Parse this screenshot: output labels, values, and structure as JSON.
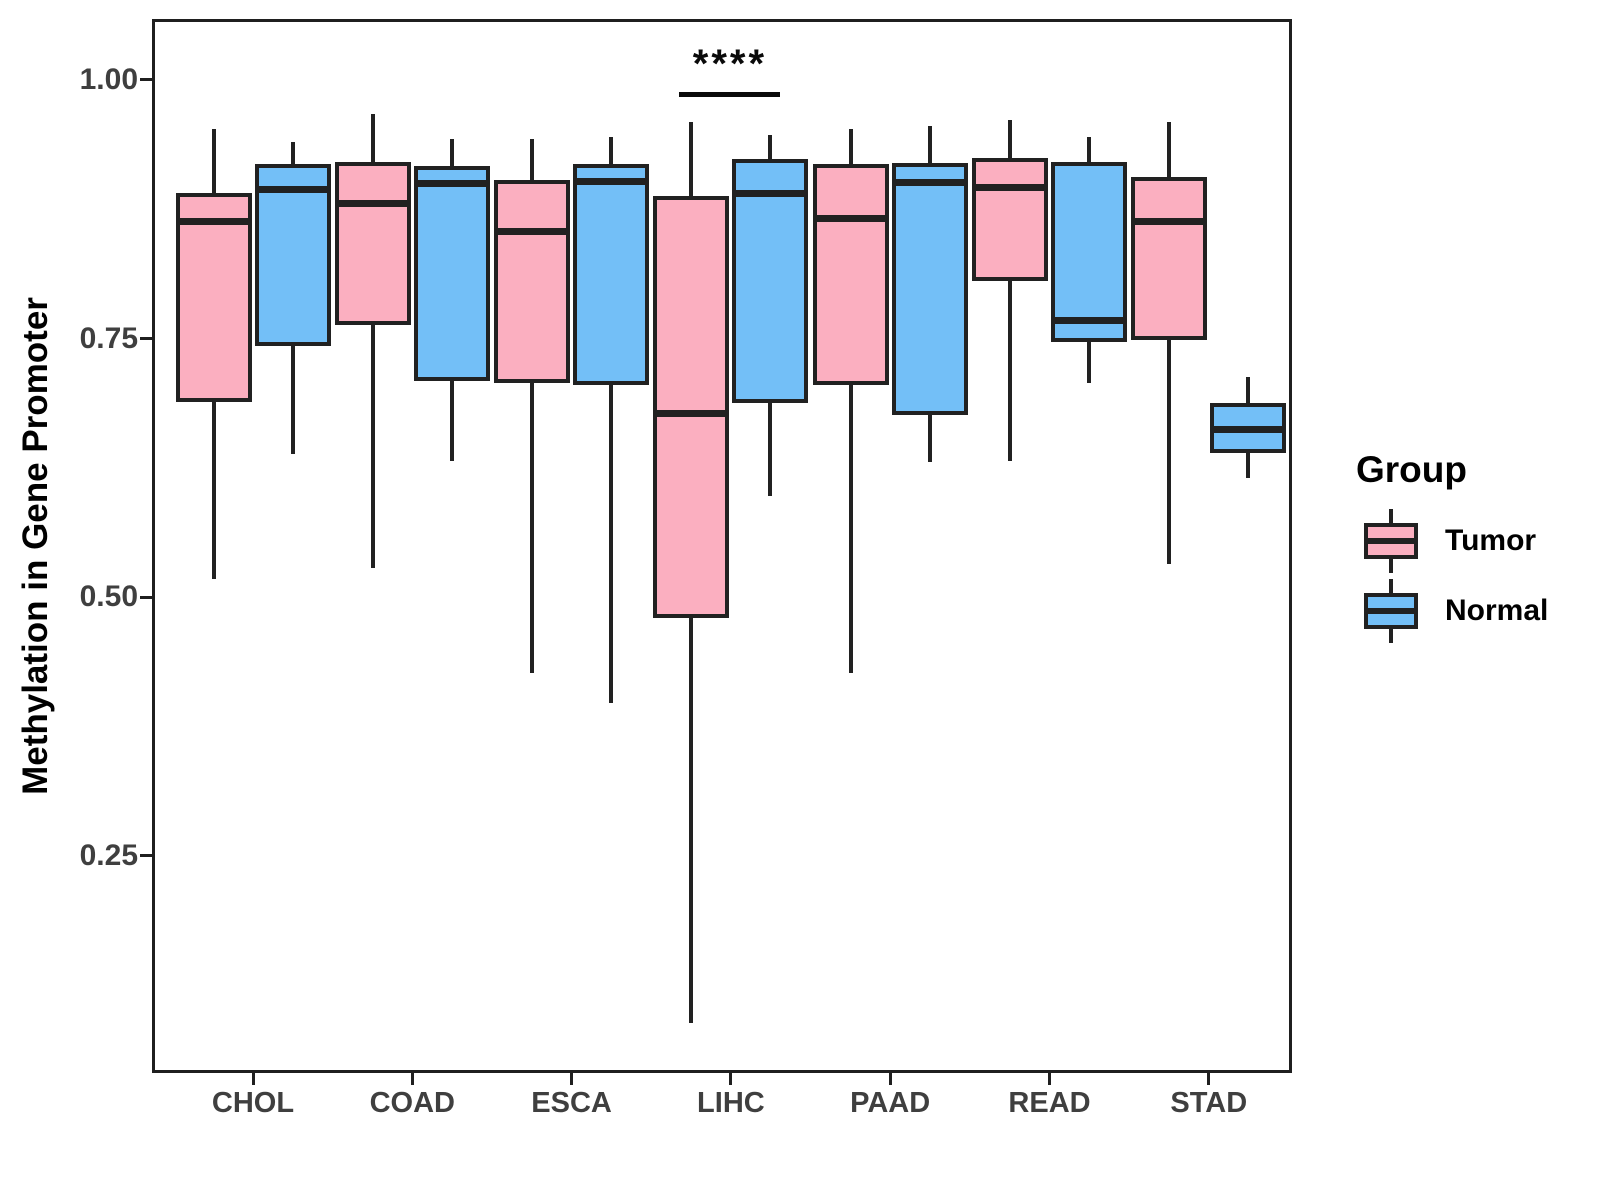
{
  "chart_data": {
    "type": "grouped_boxplot",
    "title": "",
    "xlabel": "",
    "ylabel": "Methylation in Gene Promoter",
    "ylim": [
      0.043,
      1.056
    ],
    "grid": false,
    "y_tick_values": [
      1.0,
      0.75,
      0.5,
      0.25
    ],
    "y_tick_labels": [
      "1.00",
      "0.75",
      "0.50",
      "0.25"
    ],
    "categories": [
      "CHOL",
      "COAD",
      "ESCA",
      "LIHC",
      "PAAD",
      "READ",
      "STAD"
    ],
    "groups": [
      {
        "name": "Tumor",
        "color": "#FBAFC0"
      },
      {
        "name": "Normal",
        "color": "#73BFF7"
      }
    ],
    "legend": {
      "title": "Group",
      "position": "right"
    },
    "significance": {
      "label": "****",
      "category": "LIHC",
      "y": 0.988
    },
    "series": [
      {
        "name": "Tumor",
        "boxes": [
          {
            "category": "CHOL",
            "min": 0.518,
            "q1": 0.689,
            "median": 0.863,
            "q3": 0.891,
            "max": 0.953
          },
          {
            "category": "COAD",
            "min": 0.528,
            "q1": 0.763,
            "median": 0.881,
            "q3": 0.921,
            "max": 0.967
          },
          {
            "category": "ESCA",
            "min": 0.427,
            "q1": 0.707,
            "median": 0.854,
            "q3": 0.903,
            "max": 0.943
          },
          {
            "category": "LIHC",
            "min": 0.088,
            "q1": 0.48,
            "median": 0.678,
            "q3": 0.888,
            "max": 0.959
          },
          {
            "category": "PAAD",
            "min": 0.427,
            "q1": 0.705,
            "median": 0.866,
            "q3": 0.919,
            "max": 0.953
          },
          {
            "category": "READ",
            "min": 0.632,
            "q1": 0.806,
            "median": 0.896,
            "q3": 0.925,
            "max": 0.961
          },
          {
            "category": "STAD",
            "min": 0.532,
            "q1": 0.749,
            "median": 0.863,
            "q3": 0.906,
            "max": 0.959
          }
        ]
      },
      {
        "name": "Normal",
        "boxes": [
          {
            "category": "CHOL",
            "min": 0.638,
            "q1": 0.743,
            "median": 0.894,
            "q3": 0.919,
            "max": 0.94
          },
          {
            "category": "COAD",
            "min": 0.632,
            "q1": 0.709,
            "median": 0.9,
            "q3": 0.917,
            "max": 0.943
          },
          {
            "category": "ESCA",
            "min": 0.398,
            "q1": 0.705,
            "median": 0.902,
            "q3": 0.919,
            "max": 0.945
          },
          {
            "category": "LIHC",
            "min": 0.598,
            "q1": 0.688,
            "median": 0.89,
            "q3": 0.924,
            "max": 0.947
          },
          {
            "category": "PAAD",
            "min": 0.631,
            "q1": 0.676,
            "median": 0.901,
            "q3": 0.92,
            "max": 0.956
          },
          {
            "category": "READ",
            "min": 0.707,
            "q1": 0.747,
            "median": 0.768,
            "q3": 0.921,
            "max": 0.945
          },
          {
            "category": "STAD",
            "min": 0.615,
            "q1": 0.639,
            "median": 0.662,
            "q3": 0.688,
            "max": 0.713
          }
        ]
      }
    ]
  }
}
